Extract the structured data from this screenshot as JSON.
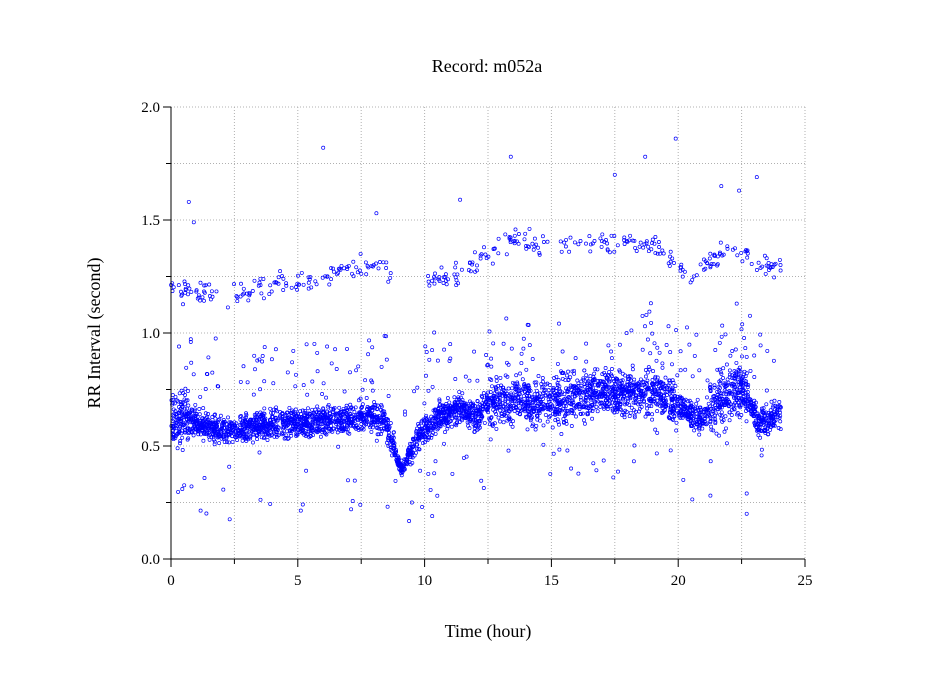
{
  "chart_data": {
    "type": "scatter",
    "title": "Record:  m052a",
    "xlabel": "Time (hour)",
    "ylabel": "RR Interval (second)",
    "xlim": [
      0,
      25
    ],
    "ylim": [
      0.0,
      2.0
    ],
    "xticks": [
      "0",
      "5",
      "10",
      "15",
      "20",
      "25"
    ],
    "yticks": [
      "0.0",
      "0.5",
      "1.0",
      "1.5",
      "2.0"
    ],
    "grid": true,
    "marker_color": "#0000ff",
    "main_trend": [
      [
        0.0,
        0.6
      ],
      [
        0.5,
        0.62
      ],
      [
        1.0,
        0.6
      ],
      [
        2.0,
        0.57
      ],
      [
        3.0,
        0.58
      ],
      [
        4.0,
        0.6
      ],
      [
        5.0,
        0.6
      ],
      [
        6.0,
        0.61
      ],
      [
        7.0,
        0.62
      ],
      [
        8.0,
        0.64
      ],
      [
        8.6,
        0.58
      ],
      [
        8.9,
        0.45
      ],
      [
        9.1,
        0.39
      ],
      [
        9.4,
        0.47
      ],
      [
        9.8,
        0.55
      ],
      [
        10.5,
        0.63
      ],
      [
        11.5,
        0.67
      ],
      [
        12.0,
        0.62
      ],
      [
        12.5,
        0.69
      ],
      [
        13.5,
        0.7
      ],
      [
        15.0,
        0.7
      ],
      [
        16.0,
        0.72
      ],
      [
        17.0,
        0.74
      ],
      [
        18.0,
        0.73
      ],
      [
        19.0,
        0.74
      ],
      [
        20.0,
        0.68
      ],
      [
        20.8,
        0.62
      ],
      [
        21.5,
        0.7
      ],
      [
        22.5,
        0.76
      ],
      [
        23.2,
        0.6
      ],
      [
        24.0,
        0.64
      ]
    ],
    "upper_cluster": [
      [
        0.0,
        1.2
      ],
      [
        1.0,
        1.18
      ],
      [
        2.0,
        1.16
      ],
      [
        3.0,
        1.18
      ],
      [
        4.4,
        1.22
      ],
      [
        5.8,
        1.22
      ],
      [
        7.0,
        1.28
      ],
      [
        8.3,
        1.3
      ],
      [
        10.5,
        1.23
      ],
      [
        12.0,
        1.3
      ],
      [
        13.5,
        1.42
      ],
      [
        15.0,
        1.38
      ],
      [
        17.0,
        1.4
      ],
      [
        19.0,
        1.4
      ],
      [
        20.5,
        1.25
      ],
      [
        22.0,
        1.38
      ],
      [
        23.9,
        1.28
      ]
    ],
    "outliers": [
      [
        6.0,
        1.82
      ],
      [
        19.9,
        1.86
      ],
      [
        13.4,
        1.78
      ],
      [
        18.7,
        1.78
      ],
      [
        0.7,
        1.58
      ],
      [
        11.4,
        1.59
      ],
      [
        23.1,
        1.69
      ],
      [
        17.5,
        1.7
      ],
      [
        0.9,
        1.49
      ],
      [
        8.1,
        1.53
      ],
      [
        21.7,
        1.65
      ],
      [
        22.4,
        1.63
      ],
      [
        9.5,
        0.25
      ],
      [
        10.3,
        0.19
      ],
      [
        7.1,
        0.22
      ],
      [
        22.7,
        0.2
      ],
      [
        22.7,
        0.29
      ],
      [
        10.5,
        0.28
      ],
      [
        20.2,
        0.35
      ],
      [
        9.9,
        0.23
      ]
    ]
  }
}
